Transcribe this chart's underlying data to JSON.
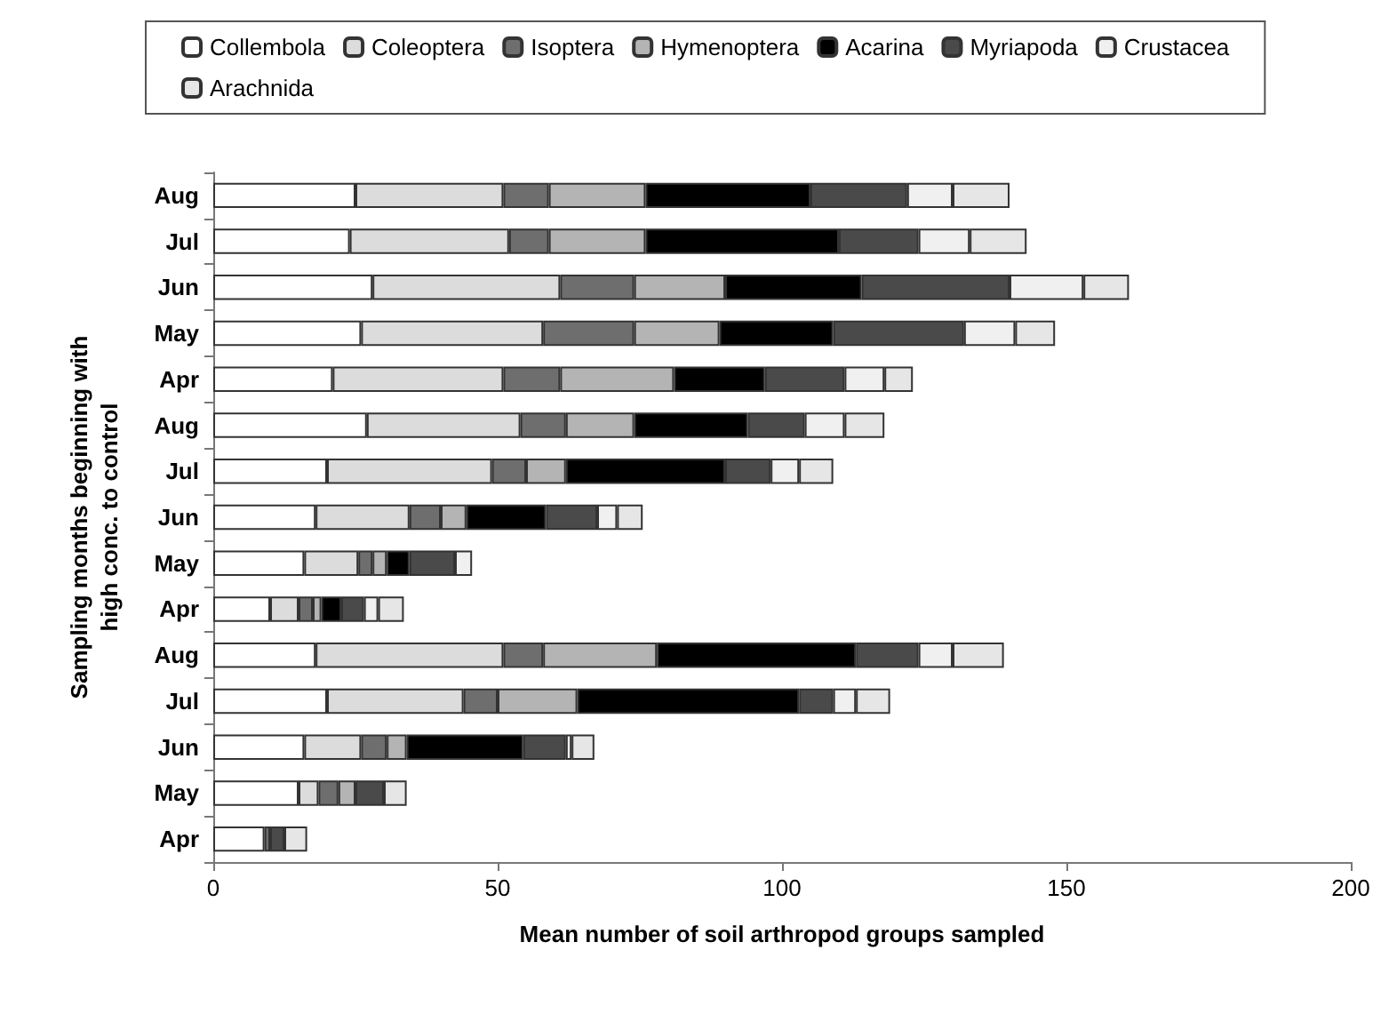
{
  "chart_data": {
    "type": "bar",
    "orientation": "horizontal",
    "stacked": true,
    "xlabel": "Mean number of soil arthropod groups sampled",
    "ylabel": "Sampling months beginning with\nhigh conc. to control",
    "categories": [
      "Aug",
      "Jul",
      "Jun",
      "May",
      "Apr",
      "Aug",
      "Jul",
      "Jun",
      "May",
      "Apr",
      "Aug",
      "Jul",
      "Jun",
      "May",
      "Apr"
    ],
    "xlim": [
      0,
      200
    ],
    "xticks": [
      0,
      50,
      100,
      150,
      200
    ],
    "grid": false,
    "legend": "top",
    "series": [
      {
        "name": "Collembola",
        "color": "#ffffff",
        "values": [
          25,
          24,
          28,
          26,
          21,
          27,
          20,
          18,
          16,
          10,
          18,
          20,
          16,
          15,
          9
        ]
      },
      {
        "name": "Coleoptera",
        "color": "#dcdcdc",
        "values": [
          26,
          28,
          33,
          32,
          30,
          27,
          29,
          16.5,
          9.5,
          5,
          33,
          24,
          10,
          3.5,
          0
        ]
      },
      {
        "name": "Isoptera",
        "color": "#6e6e6e",
        "values": [
          8,
          7,
          13,
          16,
          10,
          8,
          6,
          5.5,
          2.5,
          2.5,
          7,
          6,
          4.5,
          3.5,
          1
        ]
      },
      {
        "name": "Hymenoptera",
        "color": "#b4b4b4",
        "values": [
          17,
          17,
          16,
          15,
          20,
          12,
          7,
          4.5,
          2.5,
          1.5,
          20,
          14,
          3.5,
          3,
          0
        ]
      },
      {
        "name": "Acarina",
        "color": "#000000",
        "values": [
          29,
          34,
          24,
          20,
          16,
          20,
          28,
          14,
          4,
          3.5,
          35,
          39,
          20.5,
          0,
          0
        ]
      },
      {
        "name": "Myriapoda",
        "color": "#4a4a4a",
        "values": [
          17,
          14,
          26,
          23,
          14,
          10,
          8,
          9,
          8,
          4,
          11,
          6,
          7.5,
          5,
          2.5
        ]
      },
      {
        "name": "Crustacea",
        "color": "#f0f0f0",
        "values": [
          8,
          9,
          13,
          9,
          7,
          7,
          5,
          3.5,
          3,
          2.5,
          6,
          4,
          1,
          0,
          0
        ]
      },
      {
        "name": "Arachnida",
        "color": "#e6e6e6",
        "values": [
          10,
          10,
          8,
          7,
          5,
          7,
          6,
          4.5,
          0,
          4.5,
          9,
          6,
          4,
          4,
          4
        ]
      }
    ]
  }
}
